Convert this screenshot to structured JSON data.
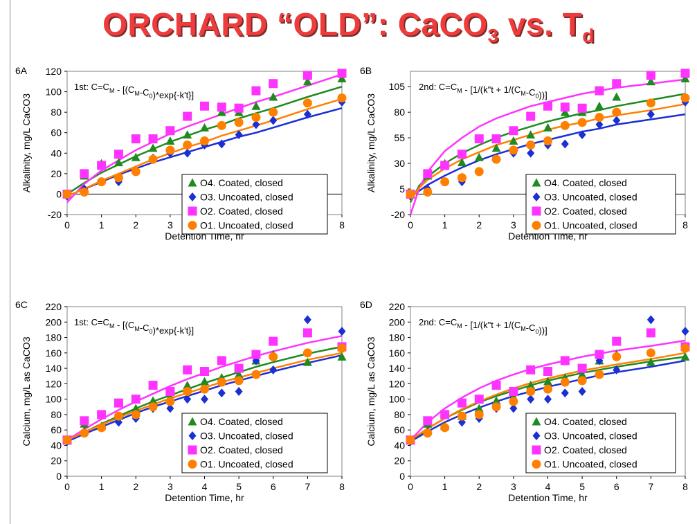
{
  "title": {
    "prefix": "ORCHARD “OLD”: CaCO",
    "sub1": "3",
    "mid": " vs. T",
    "sub2": "d"
  },
  "colors": {
    "O4": "#1f8a1f",
    "O3": "#1a2fd4",
    "O2": "#ff33ff",
    "O1": "#ff8000"
  },
  "legend": [
    {
      "key": "O4",
      "marker": "triangle",
      "label": "O4. Coated, closed"
    },
    {
      "key": "O3",
      "marker": "diamond",
      "label": "O3. Uncoated, closed"
    },
    {
      "key": "O2",
      "marker": "square",
      "label": "O2. Coated, closed"
    },
    {
      "key": "O1",
      "marker": "circle",
      "label": "O1. Uncoated, closed"
    }
  ],
  "chart_data": [
    {
      "panel": "6A",
      "type": "scatter",
      "equation": {
        "a": "1st: C=C",
        "b": "M",
        "c": " - [(C",
        "d": "M",
        "e": "-C",
        "f": "0",
        "g": ")*exp{-k't}]"
      },
      "xlabel": "Detention Time, hr",
      "ylabel": "Alkalinity, mg/L CaCO3",
      "xlim": [
        0,
        8
      ],
      "ylim": [
        -20,
        120
      ],
      "xticks": [
        0,
        1,
        2,
        3,
        4,
        5,
        6,
        7,
        8
      ],
      "yticks": [
        -20,
        0,
        20,
        40,
        60,
        80,
        100,
        120
      ],
      "x": [
        0,
        0.5,
        1,
        1.5,
        2,
        2.5,
        3,
        3.5,
        4,
        4.5,
        5,
        5.5,
        6,
        7,
        8
      ],
      "series": [
        {
          "key": "O4",
          "values": [
            0,
            18,
            30,
            31,
            36,
            45,
            52,
            58,
            65,
            80,
            80,
            86,
            95,
            110,
            113
          ]
        },
        {
          "key": "O3",
          "values": [
            -2,
            5,
            12,
            12,
            22,
            35,
            40,
            40,
            48,
            49,
            58,
            68,
            72,
            78,
            90
          ]
        },
        {
          "key": "O2",
          "values": [
            0,
            20,
            28,
            39,
            54,
            54,
            62,
            76,
            86,
            85,
            84,
            101,
            108,
            116,
            118
          ]
        },
        {
          "key": "O1",
          "values": [
            0,
            2,
            12,
            16,
            22,
            34,
            43,
            48,
            52,
            67,
            70,
            75,
            80,
            89,
            94
          ]
        }
      ],
      "fits": [
        {
          "key": "O4",
          "x": [
            0,
            0.5,
            1,
            1.5,
            2,
            2.5,
            3,
            3.5,
            4,
            4.5,
            5,
            5.5,
            6,
            7,
            8
          ],
          "y": [
            0,
            11,
            21,
            29,
            37,
            44,
            51,
            57,
            63,
            68,
            74,
            79,
            84,
            95,
            105
          ]
        },
        {
          "key": "O3",
          "x": [
            0,
            0.5,
            1,
            1.5,
            2,
            2.5,
            3,
            3.5,
            4,
            4.5,
            5,
            5.5,
            6,
            7,
            8
          ],
          "y": [
            -2,
            5,
            12,
            19,
            25,
            31,
            36,
            41,
            46,
            51,
            56,
            60,
            65,
            75,
            84
          ]
        },
        {
          "key": "O2",
          "x": [
            0,
            0.5,
            1,
            1.5,
            2,
            2.5,
            3,
            3.5,
            4,
            4.5,
            5,
            5.5,
            6,
            7,
            8
          ],
          "y": [
            -8,
            10,
            23,
            33,
            43,
            51,
            59,
            66,
            72,
            78,
            84,
            90,
            95,
            106,
            117
          ]
        },
        {
          "key": "O1",
          "x": [
            0,
            0.5,
            1,
            1.5,
            2,
            2.5,
            3,
            3.5,
            4,
            4.5,
            5,
            5.5,
            6,
            7,
            8
          ],
          "y": [
            -2,
            5,
            13,
            20,
            27,
            34,
            40,
            46,
            51,
            57,
            62,
            67,
            72,
            83,
            93
          ]
        }
      ]
    },
    {
      "panel": "6B",
      "type": "scatter",
      "equation": {
        "a": "2nd: C=C",
        "b": "M",
        "c": " - [1/(k\"t + 1/(C",
        "d": "M",
        "e": "-C",
        "f": "0",
        "g": "))]"
      },
      "xlabel": "Detention Time, hr",
      "ylabel": "Alkalinity, mg/L CaCO3",
      "xlim": [
        0,
        8
      ],
      "ylim": [
        -20,
        120
      ],
      "xticks": [
        0,
        1,
        2,
        3,
        4,
        5,
        6,
        7,
        8
      ],
      "yticks": [
        -20,
        5,
        30,
        55,
        80,
        105
      ],
      "x": [
        0,
        0.5,
        1,
        1.5,
        2,
        2.5,
        3,
        3.5,
        4,
        4.5,
        5,
        5.5,
        6,
        7,
        8
      ],
      "series": [
        {
          "key": "O4",
          "values": [
            0,
            18,
            30,
            31,
            36,
            45,
            52,
            58,
            65,
            80,
            80,
            86,
            95,
            110,
            113
          ]
        },
        {
          "key": "O3",
          "values": [
            -2,
            5,
            12,
            12,
            22,
            35,
            40,
            40,
            48,
            49,
            58,
            68,
            72,
            78,
            90
          ]
        },
        {
          "key": "O2",
          "values": [
            0,
            20,
            28,
            39,
            54,
            54,
            62,
            76,
            86,
            85,
            84,
            101,
            108,
            116,
            118
          ]
        },
        {
          "key": "O1",
          "values": [
            0,
            2,
            12,
            16,
            22,
            34,
            43,
            48,
            52,
            67,
            70,
            75,
            80,
            89,
            94
          ]
        }
      ],
      "fits": [
        {
          "key": "O4",
          "x": [
            0,
            0.25,
            0.5,
            1,
            1.5,
            2,
            2.5,
            3,
            3.5,
            4,
            4.5,
            5,
            5.5,
            6,
            7,
            8
          ],
          "y": [
            -8,
            8,
            17,
            30,
            40,
            48,
            55,
            61,
            66,
            71,
            75,
            79,
            82,
            86,
            92,
            98
          ]
        },
        {
          "key": "O3",
          "x": [
            0,
            0.25,
            0.5,
            1,
            1.5,
            2,
            2.5,
            3,
            3.5,
            4,
            4.5,
            5,
            5.5,
            6,
            7,
            8
          ],
          "y": [
            -2,
            3,
            9,
            18,
            26,
            33,
            39,
            44,
            49,
            53,
            57,
            61,
            64,
            68,
            73,
            78
          ]
        },
        {
          "key": "O2",
          "x": [
            0,
            0.25,
            0.5,
            1,
            1.5,
            2,
            2.5,
            3,
            3.5,
            4,
            4.5,
            5,
            5.5,
            6,
            7,
            8
          ],
          "y": [
            -20,
            5,
            22,
            42,
            55,
            66,
            74,
            80,
            86,
            90,
            94,
            98,
            101,
            104,
            108,
            112
          ]
        },
        {
          "key": "O1",
          "x": [
            0,
            0.25,
            0.5,
            1,
            1.5,
            2,
            2.5,
            3,
            3.5,
            4,
            4.5,
            5,
            5.5,
            6,
            7,
            8
          ],
          "y": [
            -6,
            6,
            14,
            25,
            34,
            41,
            48,
            53,
            58,
            63,
            67,
            70,
            74,
            77,
            82,
            88
          ]
        }
      ]
    },
    {
      "panel": "6C",
      "type": "scatter",
      "equation": {
        "a": "1st: C=C",
        "b": "M",
        "c": " - [(C",
        "d": "M",
        "e": "-C",
        "f": "0",
        "g": ")*exp{-k't}]"
      },
      "xlabel": "Detention Time, hr",
      "ylabel": "Calcium, mg/L as CaCO3",
      "xlim": [
        0,
        8
      ],
      "ylim": [
        0,
        220
      ],
      "xticks": [
        0,
        1,
        2,
        3,
        4,
        5,
        6,
        7,
        8
      ],
      "yticks": [
        0,
        20,
        40,
        60,
        80,
        100,
        120,
        140,
        160,
        180,
        200,
        220
      ],
      "x": [
        0,
        0.5,
        1,
        1.5,
        2,
        2.5,
        3,
        3.5,
        4,
        4.5,
        5,
        5.5,
        6,
        7,
        8
      ],
      "series": [
        {
          "key": "O4",
          "values": [
            46,
            68,
            65,
            78,
            88,
            98,
            103,
            118,
            123,
            128,
            132,
            150,
            158,
            148,
            155
          ]
        },
        {
          "key": "O3",
          "values": [
            45,
            58,
            63,
            70,
            75,
            88,
            88,
            100,
            100,
            108,
            110,
            150,
            138,
            203,
            188
          ]
        },
        {
          "key": "O2",
          "values": [
            47,
            72,
            80,
            95,
            100,
            118,
            110,
            138,
            136,
            150,
            140,
            158,
            175,
            186,
            168
          ]
        },
        {
          "key": "O1",
          "values": [
            47,
            56,
            63,
            78,
            80,
            90,
            97,
            110,
            113,
            122,
            124,
            132,
            155,
            160,
            166
          ]
        }
      ],
      "fits": [
        {
          "key": "O4",
          "x": [
            0,
            0.5,
            1,
            1.5,
            2,
            2.5,
            3,
            3.5,
            4,
            4.5,
            5,
            5.5,
            6,
            7,
            8
          ],
          "y": [
            46,
            57,
            68,
            78,
            88,
            97,
            105,
            113,
            121,
            128,
            135,
            142,
            148,
            159,
            168
          ]
        },
        {
          "key": "O3",
          "x": [
            0,
            0.5,
            1,
            1.5,
            2,
            2.5,
            3,
            3.5,
            4,
            4.5,
            5,
            5.5,
            6,
            7,
            8
          ],
          "y": [
            45,
            55,
            64,
            73,
            82,
            90,
            97,
            104,
            111,
            118,
            124,
            130,
            136,
            147,
            157
          ]
        },
        {
          "key": "O2",
          "x": [
            0,
            0.5,
            1,
            1.5,
            2,
            2.5,
            3,
            3.5,
            4,
            4.5,
            5,
            5.5,
            6,
            7,
            8
          ],
          "y": [
            47,
            61,
            74,
            86,
            97,
            107,
            117,
            126,
            134,
            142,
            149,
            156,
            162,
            173,
            182
          ]
        },
        {
          "key": "O1",
          "x": [
            0,
            0.5,
            1,
            1.5,
            2,
            2.5,
            3,
            3.5,
            4,
            4.5,
            5,
            5.5,
            6,
            7,
            8
          ],
          "y": [
            47,
            57,
            67,
            76,
            85,
            93,
            101,
            108,
            115,
            122,
            128,
            134,
            140,
            151,
            160
          ]
        }
      ]
    },
    {
      "panel": "6D",
      "type": "scatter",
      "equation": {
        "a": "2nd: C=C",
        "b": "M",
        "c": " - [1/(k\"t + 1/(C",
        "d": "M",
        "e": "-C",
        "f": "0",
        "g": "))]"
      },
      "xlabel": "Detention Time, hr",
      "ylabel": "Calcium, mg/L as CaCO3",
      "xlim": [
        0,
        8
      ],
      "ylim": [
        0,
        220
      ],
      "xticks": [
        0,
        1,
        2,
        3,
        4,
        5,
        6,
        7,
        8
      ],
      "yticks": [
        0,
        20,
        40,
        60,
        80,
        100,
        120,
        140,
        160,
        180,
        200,
        220
      ],
      "x": [
        0,
        0.5,
        1,
        1.5,
        2,
        2.5,
        3,
        3.5,
        4,
        4.5,
        5,
        5.5,
        6,
        7,
        8
      ],
      "series": [
        {
          "key": "O4",
          "values": [
            46,
            68,
            65,
            78,
            88,
            98,
            103,
            118,
            123,
            128,
            132,
            150,
            158,
            148,
            155
          ]
        },
        {
          "key": "O3",
          "values": [
            45,
            58,
            63,
            70,
            75,
            88,
            88,
            100,
            100,
            108,
            110,
            150,
            138,
            203,
            188
          ]
        },
        {
          "key": "O2",
          "values": [
            47,
            72,
            80,
            95,
            100,
            118,
            110,
            138,
            136,
            150,
            140,
            158,
            175,
            186,
            168
          ]
        },
        {
          "key": "O1",
          "values": [
            47,
            56,
            63,
            78,
            80,
            90,
            97,
            110,
            113,
            122,
            124,
            132,
            155,
            160,
            166
          ]
        }
      ],
      "fits": [
        {
          "key": "O4",
          "x": [
            0,
            0.5,
            1,
            1.5,
            2,
            2.5,
            3,
            3.5,
            4,
            4.5,
            5,
            5.5,
            6,
            7,
            8
          ],
          "y": [
            46,
            62,
            75,
            86,
            96,
            104,
            111,
            118,
            124,
            129,
            134,
            138,
            142,
            149,
            155
          ]
        },
        {
          "key": "O3",
          "x": [
            0,
            0.5,
            1,
            1.5,
            2,
            2.5,
            3,
            3.5,
            4,
            4.5,
            5,
            5.5,
            6,
            7,
            8
          ],
          "y": [
            45,
            58,
            70,
            80,
            89,
            97,
            104,
            110,
            116,
            121,
            126,
            131,
            135,
            142,
            150
          ]
        },
        {
          "key": "O2",
          "x": [
            0,
            0.5,
            1,
            1.5,
            2,
            2.5,
            3,
            3.5,
            4,
            4.5,
            5,
            5.5,
            6,
            7,
            8
          ],
          "y": [
            47,
            70,
            88,
            102,
            114,
            124,
            132,
            139,
            145,
            150,
            155,
            159,
            163,
            169,
            176
          ]
        },
        {
          "key": "O1",
          "x": [
            0,
            0.5,
            1,
            1.5,
            2,
            2.5,
            3,
            3.5,
            4,
            4.5,
            5,
            5.5,
            6,
            7,
            8
          ],
          "y": [
            47,
            62,
            75,
            87,
            97,
            106,
            114,
            121,
            127,
            132,
            137,
            141,
            145,
            152,
            160
          ]
        }
      ]
    }
  ]
}
